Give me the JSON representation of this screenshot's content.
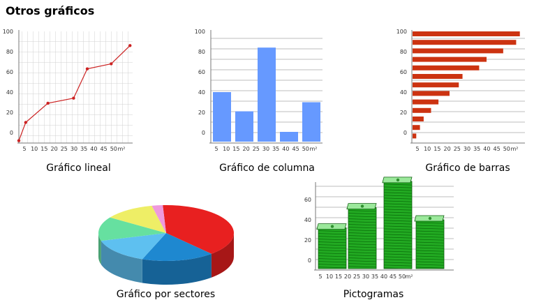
{
  "title": "Otros gráficos",
  "captions": {
    "line": "Gráfico lineal",
    "column": "Gráfico de columna",
    "bars": "Gráfico de barras",
    "pie": "Gráfico por sectores",
    "picto": "Pictogramas"
  },
  "colors": {
    "line": "#cc2222",
    "column": "#6699ff",
    "bars": "#cc3311",
    "picto": "#22aa22",
    "pie": [
      "#e82020",
      "#1e88d0",
      "#5ec0f0",
      "#66e0a0",
      "#eeee66",
      "#ee99dd"
    ]
  },
  "chart_data": [
    {
      "type": "line",
      "title": "",
      "y_tick_labels": [
        "100",
        "80",
        "60",
        "40",
        "20",
        "0"
      ],
      "x_tick_labels": [
        "5",
        "10",
        "15",
        "20",
        "25",
        "30",
        "35",
        "40",
        "45",
        "50",
        "m²"
      ],
      "ylim": [
        -10,
        100
      ],
      "x": [
        0,
        4,
        17,
        32,
        40,
        54,
        65
      ],
      "y": [
        -8,
        10,
        29,
        34,
        63,
        68,
        86
      ]
    },
    {
      "type": "bar",
      "title": "",
      "y_tick_labels": [
        "100",
        "80",
        "60",
        "40",
        "20",
        "0"
      ],
      "x_tick_labels": [
        "5",
        "10",
        "15",
        "20",
        "25",
        "30",
        "35",
        "40",
        "45",
        "50",
        "m²"
      ],
      "ylim": [
        -10,
        100
      ],
      "values": [
        40,
        21,
        84,
        0,
        30
      ]
    },
    {
      "type": "bar",
      "orientation": "horizontal",
      "title": "",
      "y_tick_labels": [
        "100",
        "80",
        "60",
        "40",
        "20",
        "0"
      ],
      "x_tick_labels": [
        "5",
        "10",
        "15",
        "20",
        "25",
        "30",
        "35",
        "40",
        "45",
        "50",
        "m²"
      ],
      "values": [
        58,
        56,
        49,
        40,
        36,
        27,
        25,
        20,
        14,
        10,
        6,
        4,
        2
      ]
    },
    {
      "type": "pie",
      "title": "",
      "values": [
        45,
        20,
        17,
        16,
        14,
        3
      ]
    },
    {
      "type": "bar",
      "style": "pictogram",
      "title": "",
      "y_tick_labels": [
        "60",
        "40",
        "20",
        "0"
      ],
      "x_tick_labels": [
        "5",
        "10",
        "15",
        "20",
        "25",
        "30",
        "35",
        "40",
        "45",
        "50",
        "m²"
      ],
      "values": [
        32,
        52,
        78,
        40
      ]
    }
  ]
}
